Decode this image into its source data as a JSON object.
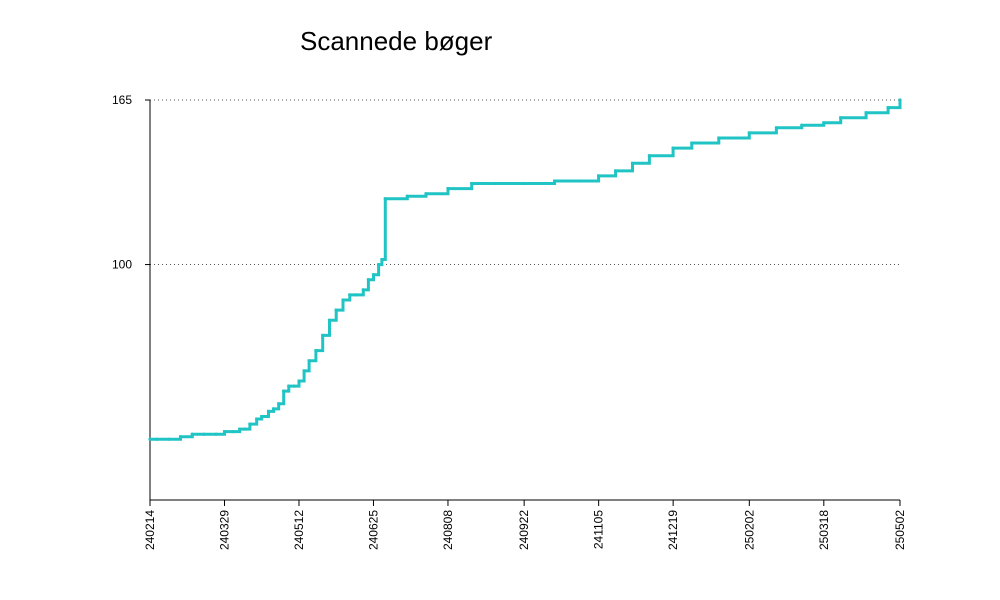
{
  "chart_data": {
    "type": "line",
    "title": "Scannede bøger",
    "xlabel": "",
    "ylabel": "",
    "x_ticks": [
      "240214",
      "240329",
      "240512",
      "240625",
      "240808",
      "240922",
      "241105",
      "241219",
      "250202",
      "250318",
      "250502"
    ],
    "y_ticks": [
      100,
      165
    ],
    "ylim": [
      7,
      165
    ],
    "grid": {
      "horizontal": true,
      "vertical": false,
      "style": "dotted"
    },
    "colors": {
      "line": "#20c4c4",
      "grid": "#555555",
      "axis": "#000000"
    },
    "series": [
      {
        "x": [
          "240214",
          "240218",
          "240225",
          "240303",
          "240310",
          "240317",
          "240324",
          "240329",
          "240403",
          "240407",
          "240410",
          "240413",
          "240417",
          "240420",
          "240424",
          "240427",
          "240430",
          "240503",
          "240506",
          "240509",
          "240512",
          "240515",
          "240518",
          "240522",
          "240526",
          "240530",
          "240603",
          "240607",
          "240611",
          "240615",
          "240619",
          "240622",
          "240625",
          "240628",
          "240630",
          "240702",
          "240715",
          "240726",
          "240808",
          "240822",
          "240905",
          "240922",
          "241010",
          "241025",
          "241105",
          "241115",
          "241125",
          "241205",
          "241219",
          "241230",
          "250115",
          "250202",
          "250218",
          "250305",
          "250318",
          "250328",
          "250412",
          "250425",
          "250502"
        ],
        "y": [
          31,
          31,
          31,
          32,
          33,
          33,
          33,
          34,
          34,
          35,
          35,
          37,
          39,
          40,
          42,
          43,
          45,
          50,
          52,
          52,
          54,
          58,
          62,
          66,
          72,
          78,
          82,
          86,
          88,
          88,
          90,
          94,
          96,
          100,
          102,
          126,
          127,
          128,
          130,
          132,
          132,
          132,
          133,
          133,
          135,
          137,
          140,
          143,
          146,
          148,
          150,
          152,
          154,
          155,
          156,
          158,
          160,
          162,
          165
        ]
      }
    ]
  }
}
